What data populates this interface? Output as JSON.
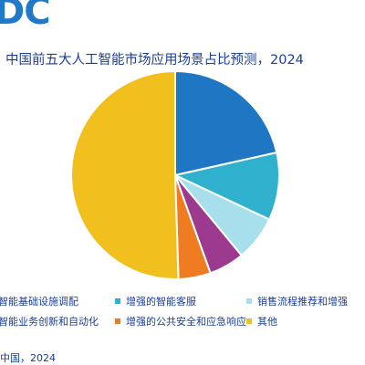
{
  "logo": "DC",
  "title": "中国前五大人工智能市场应用场景占比预测，2024",
  "source": "中国，2024",
  "chart_data": {
    "type": "pie",
    "title": "中国前五大人工智能市场应用场景占比预测，2024",
    "legend": "bottom",
    "slices": [
      {
        "name": "智能基础设施调配",
        "value": 21.5,
        "color": "#1f77c4"
      },
      {
        "name": "增强的智能客服",
        "value": 10.5,
        "color": "#2fb0cc"
      },
      {
        "name": "销售流程推荐和增强",
        "value": 7.0,
        "color": "#a7e0ec"
      },
      {
        "name": "智能业务创新和自动化",
        "value": 5.5,
        "color": "#9b3a8f"
      },
      {
        "name": "增强的公共安全和应急响应",
        "value": 5.0,
        "color": "#f07c22"
      },
      {
        "name": "其他",
        "value": 50.5,
        "color": "#f2c01e"
      }
    ]
  }
}
